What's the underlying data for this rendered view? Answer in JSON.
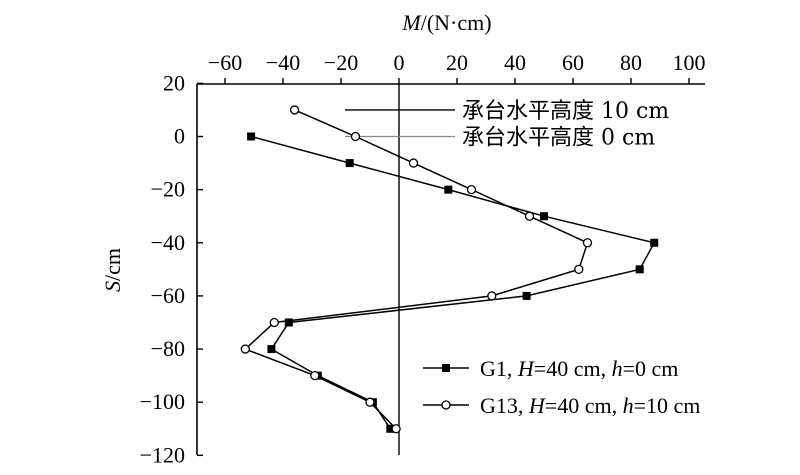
{
  "chart_data": {
    "type": "line",
    "x_axis": {
      "label_var": "M",
      "label_unit": "/(N·cm)",
      "range": [
        -70,
        100
      ],
      "ticks": [
        -60,
        -40,
        -20,
        0,
        20,
        40,
        60,
        80,
        100
      ],
      "tick_labels": [
        "−60",
        "−40",
        "−20",
        "0",
        "20",
        "40",
        "60",
        "80",
        "100"
      ],
      "position": "top"
    },
    "y_axis": {
      "label_var": "S",
      "label_unit": "/cm",
      "range": [
        -120,
        20
      ],
      "ticks": [
        20,
        0,
        -20,
        -40,
        -60,
        -80,
        -100,
        -120
      ],
      "tick_labels": [
        "20",
        "0",
        "−20",
        "−40",
        "−60",
        "−80",
        "−100",
        "−120"
      ]
    },
    "series": [
      {
        "name_prefix": "G1, ",
        "name_H": "H",
        "name_mid": "=40 cm, ",
        "name_h": "h",
        "name_suffix": "=0 cm",
        "marker": "square",
        "color": "#000000",
        "points": [
          [
            -51,
            0
          ],
          [
            -17,
            -10
          ],
          [
            17,
            -20
          ],
          [
            50,
            -30
          ],
          [
            88,
            -40
          ],
          [
            83,
            -50
          ],
          [
            44,
            -60
          ],
          [
            -38,
            -70
          ],
          [
            -44,
            -80
          ],
          [
            -28,
            -90
          ],
          [
            -9,
            -100
          ],
          [
            -3,
            -110
          ]
        ]
      },
      {
        "name_prefix": "G13, ",
        "name_H": "H",
        "name_mid": "=40 cm, ",
        "name_h": "h",
        "name_suffix": "=10 cm",
        "marker": "circle",
        "color": "#000000",
        "points": [
          [
            -36,
            10
          ],
          [
            -15,
            0
          ],
          [
            5,
            -10
          ],
          [
            25,
            -20
          ],
          [
            45,
            -30
          ],
          [
            65,
            -40
          ],
          [
            62,
            -50
          ],
          [
            32,
            -60
          ],
          [
            -43,
            -70
          ],
          [
            -53,
            -80
          ],
          [
            -29,
            -90
          ],
          [
            -10,
            -100
          ],
          [
            -1,
            -110
          ]
        ]
      }
    ],
    "reference_lines": [
      {
        "label": "承台水平高度 10 cm",
        "y": 10,
        "color": "#000000"
      },
      {
        "label": "承台水平高度 0 cm",
        "y": 0,
        "color": "#888888"
      }
    ],
    "zero_line_x": 0,
    "legend_position": "bottom-right",
    "grid": false
  }
}
